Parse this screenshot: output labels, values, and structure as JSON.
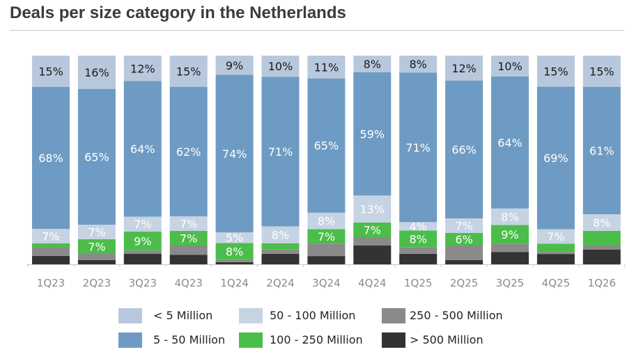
{
  "title": "Deals per size category in the Netherlands",
  "colors": {
    "lt5": "#b8c8dc",
    "m5_50": "#6e9bc3",
    "m50_100": "#c6d3e3",
    "m100_250": "#4cbd4a",
    "m250_500": "#8a8a8a",
    "gt500": "#333333",
    "axis": "#c8c8c8"
  },
  "legend": [
    {
      "key": "lt5",
      "label": "< 5 Million"
    },
    {
      "key": "m50_100",
      "label": "50 - 100 Million"
    },
    {
      "key": "m250_500",
      "label": "250 - 500 Million"
    },
    {
      "key": "m5_50",
      "label": "5 - 50 Million"
    },
    {
      "key": "m100_250",
      "label": "100 - 250 Million"
    },
    {
      "key": "gt500",
      "label": "> 500 Million"
    }
  ],
  "chart_data": {
    "type": "bar",
    "stacked": true,
    "normalized_percent": true,
    "title": "Deals per size category in the Netherlands",
    "categories": [
      "1Q23",
      "2Q23",
      "3Q23",
      "4Q23",
      "1Q24",
      "2Q24",
      "3Q24",
      "4Q24",
      "1Q25",
      "2Q25",
      "3Q25",
      "4Q25",
      "1Q26"
    ],
    "ylim": [
      0,
      100
    ],
    "grid": false,
    "legend_position": "bottom",
    "series": [
      {
        "name": "> 500 Million",
        "key": "gt500",
        "values": [
          4,
          2,
          5,
          4.5,
          1,
          5,
          4,
          9,
          5,
          2,
          6,
          5,
          7
        ],
        "labels": [
          "",
          "",
          "",
          "",
          "",
          "",
          "",
          "",
          "",
          "",
          "",
          "",
          ""
        ]
      },
      {
        "name": "250 - 500 Million",
        "key": "m250_500",
        "values": [
          4,
          3,
          1.5,
          4.5,
          1,
          2,
          6,
          4,
          3,
          7,
          4,
          1,
          2
        ],
        "labels": [
          "",
          "",
          "",
          "",
          "",
          "",
          "",
          "",
          "",
          "",
          "",
          "",
          ""
        ]
      },
      {
        "name": "100 - 250 Million",
        "key": "m100_250",
        "values": [
          2,
          7,
          9,
          7,
          8,
          3,
          7,
          7,
          8,
          6,
          9,
          4,
          7
        ],
        "labels": [
          "",
          "7%",
          "9%",
          "7%",
          "8%",
          "",
          "7%",
          "7%",
          "8%",
          "6%",
          "9%",
          "",
          ""
        ]
      },
      {
        "name": "50 - 100 Million",
        "key": "m50_100",
        "values": [
          7,
          7,
          7,
          7,
          5,
          8,
          8,
          13,
          4,
          7,
          8,
          7,
          8
        ],
        "labels": [
          "7%",
          "7%",
          "7%",
          "7%",
          "5%",
          "8%",
          "8%",
          "13%",
          "4%",
          "7%",
          "8%",
          "7%",
          "8%"
        ]
      },
      {
        "name": "5 - 50 Million",
        "key": "m5_50",
        "values": [
          68,
          65,
          64,
          62,
          74,
          71,
          65,
          59,
          71,
          66,
          64,
          69,
          61
        ],
        "labels": [
          "68%",
          "65%",
          "64%",
          "62%",
          "74%",
          "71%",
          "65%",
          "59%",
          "71%",
          "66%",
          "64%",
          "69%",
          "61%"
        ]
      },
      {
        "name": "< 5 Million",
        "key": "lt5",
        "values": [
          15,
          16,
          12,
          15,
          9,
          10,
          11,
          8,
          8,
          12,
          10,
          15,
          15
        ],
        "labels": [
          "15%",
          "16%",
          "12%",
          "15%",
          "9%",
          "10%",
          "11%",
          "8%",
          "8%",
          "12%",
          "10%",
          "15%",
          "15%"
        ]
      }
    ]
  }
}
